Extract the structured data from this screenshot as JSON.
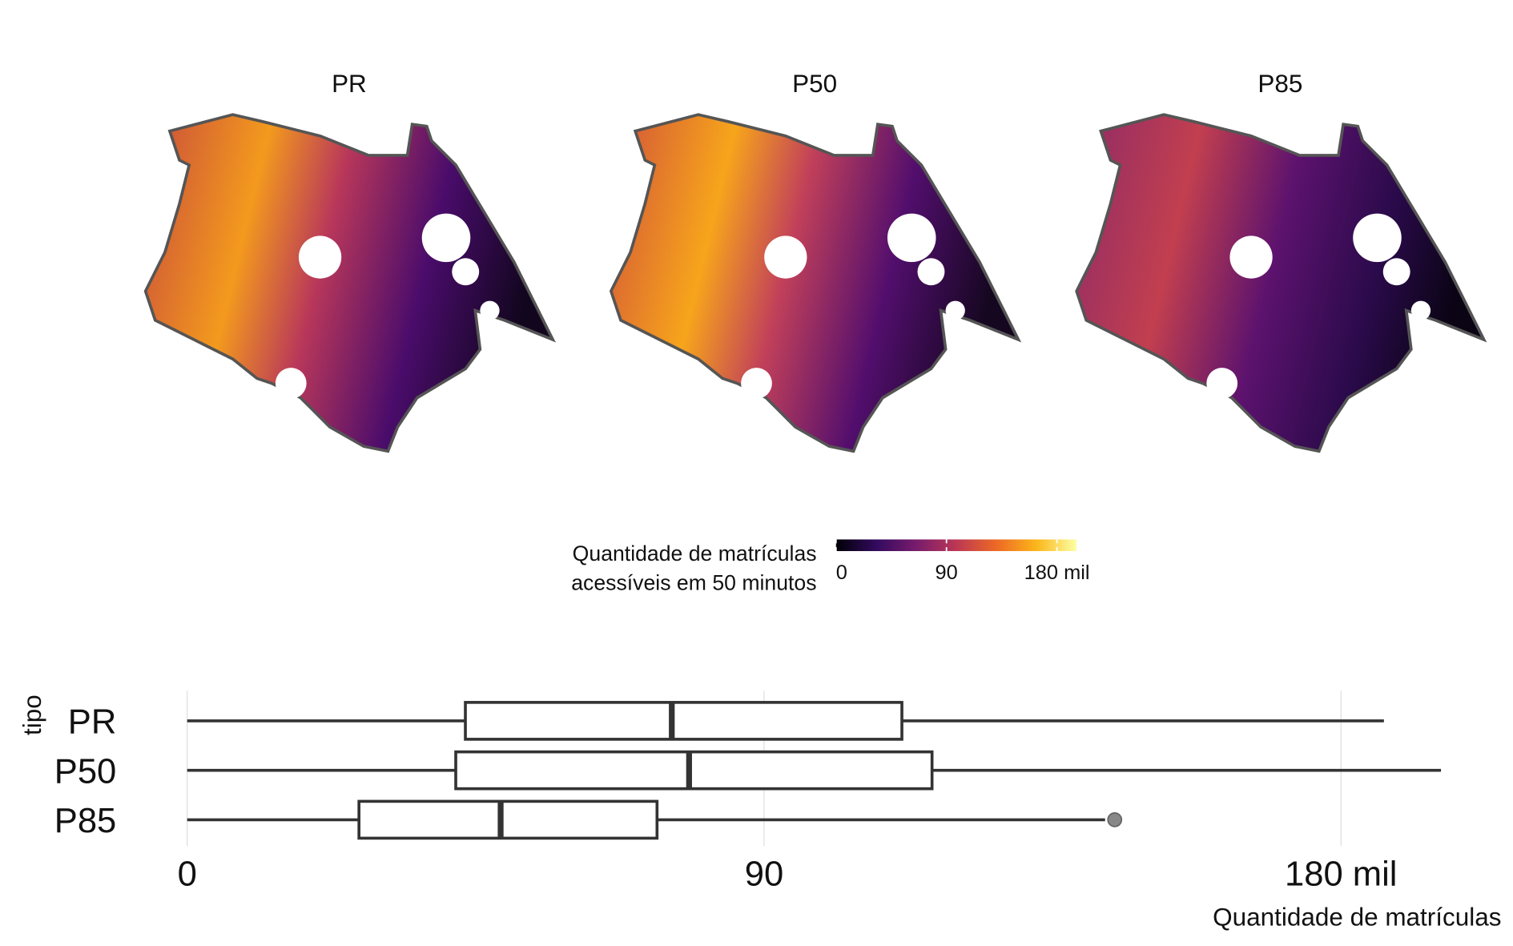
{
  "chart_data": [
    {
      "type": "map",
      "panels": [
        "PR",
        "P50",
        "P85"
      ],
      "legend_title": [
        "Quantidade de matrículas",
        "acessíveis em 50 minutos"
      ],
      "clim": [
        0,
        196
      ],
      "ticks": [
        0,
        90,
        {
          "value": 180,
          "label": "180 mil"
        }
      ],
      "colormap": [
        "#000004",
        "#320a5e",
        "#781c6d",
        "#bc3754",
        "#ed6925",
        "#fbb61a",
        "#fcffa4"
      ]
    },
    {
      "type": "box",
      "ylabel": "tipo",
      "xlabel": "Quantidade de matrículas",
      "categories": [
        "PR",
        "P50",
        "P85"
      ],
      "xlim": [
        0,
        197
      ],
      "xticks": [
        0,
        90,
        {
          "value": 180,
          "label": "180 mil"
        }
      ],
      "grid": true,
      "min": [
        0,
        0,
        0
      ],
      "q1": [
        43.4,
        41.9,
        26.8
      ],
      "median": [
        75.6,
        78.3,
        48.9
      ],
      "q3": [
        111.5,
        116.2,
        73.3
      ],
      "max": [
        186.7,
        195.6,
        143.2
      ],
      "outliers": [
        [],
        [],
        [
          144.7
        ]
      ]
    }
  ]
}
